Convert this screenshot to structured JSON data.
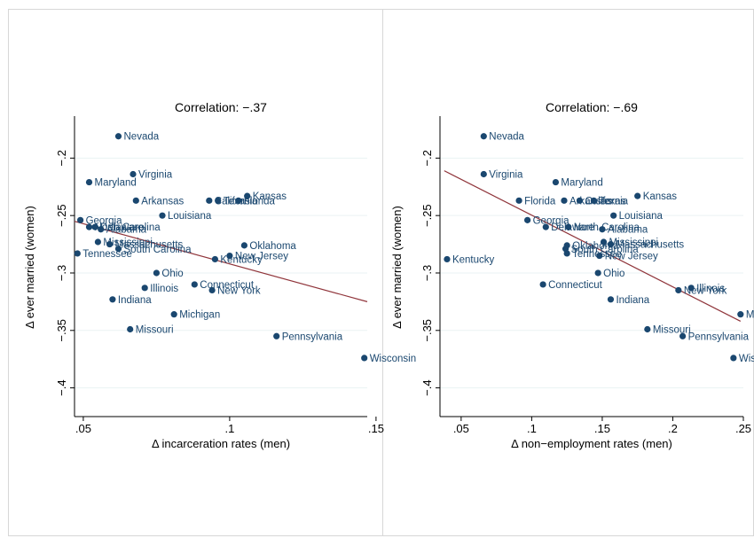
{
  "colors": {
    "marker": "#1a476f",
    "fit_line": "#90353b",
    "axis": "#000000",
    "grid": "#eaf2f3",
    "frame": "#d7d7d7",
    "background": "#ffffff"
  },
  "chart_data": [
    {
      "type": "scatter",
      "title": "Correlation: −.37",
      "xlabel": "Δ incarceration rates (men)",
      "ylabel": "Δ ever married (women)",
      "xlim": [
        0.047,
        0.147
      ],
      "ylim": [
        -0.425,
        -0.165
      ],
      "xticks": [
        {
          "value": 0.05,
          "label": ".05"
        },
        {
          "value": 0.1,
          "label": ".1"
        },
        {
          "value": 0.15,
          "label": ".15"
        }
      ],
      "yticks": [
        {
          "value": -0.2,
          "label": "−.2"
        },
        {
          "value": -0.25,
          "label": "−.25"
        },
        {
          "value": -0.3,
          "label": "−.3"
        },
        {
          "value": -0.35,
          "label": "−.35"
        },
        {
          "value": -0.4,
          "label": "−.4"
        }
      ],
      "grid": true,
      "fit_line": {
        "x": [
          0.047,
          0.147
        ],
        "y": [
          -0.255,
          -0.325
        ]
      },
      "points": [
        {
          "label": "Nevada",
          "x": 0.062,
          "y": -0.181
        },
        {
          "label": "Virginia",
          "x": 0.067,
          "y": -0.214
        },
        {
          "label": "Maryland",
          "x": 0.052,
          "y": -0.221
        },
        {
          "label": "Arkansas",
          "x": 0.068,
          "y": -0.237
        },
        {
          "label": "California",
          "x": 0.093,
          "y": -0.237
        },
        {
          "label": "Texas",
          "x": 0.096,
          "y": -0.237
        },
        {
          "label": "Florida",
          "x": 0.103,
          "y": -0.237
        },
        {
          "label": "Kansas",
          "x": 0.106,
          "y": -0.233
        },
        {
          "label": "Louisiana",
          "x": 0.077,
          "y": -0.25
        },
        {
          "label": "Georgia",
          "x": 0.049,
          "y": -0.254
        },
        {
          "label": "North Carolina",
          "x": 0.052,
          "y": -0.26
        },
        {
          "label": "Delaware",
          "x": 0.054,
          "y": -0.26
        },
        {
          "label": "Alabama",
          "x": 0.056,
          "y": -0.262
        },
        {
          "label": "Mississippi",
          "x": 0.055,
          "y": -0.273
        },
        {
          "label": "Massachusetts",
          "x": 0.059,
          "y": -0.275
        },
        {
          "label": "South Carolina",
          "x": 0.062,
          "y": -0.279
        },
        {
          "label": "Tennessee",
          "x": 0.048,
          "y": -0.283
        },
        {
          "label": "Oklahoma",
          "x": 0.105,
          "y": -0.276
        },
        {
          "label": "New Jersey",
          "x": 0.1,
          "y": -0.285
        },
        {
          "label": "Kentucky",
          "x": 0.095,
          "y": -0.288
        },
        {
          "label": "Ohio",
          "x": 0.075,
          "y": -0.3
        },
        {
          "label": "Connecticut",
          "x": 0.088,
          "y": -0.31
        },
        {
          "label": "Illinois",
          "x": 0.071,
          "y": -0.313
        },
        {
          "label": "New York",
          "x": 0.094,
          "y": -0.315
        },
        {
          "label": "Indiana",
          "x": 0.06,
          "y": -0.323
        },
        {
          "label": "Michigan",
          "x": 0.081,
          "y": -0.336
        },
        {
          "label": "Missouri",
          "x": 0.066,
          "y": -0.349
        },
        {
          "label": "Pennsylvania",
          "x": 0.116,
          "y": -0.355
        },
        {
          "label": "Wisconsin",
          "x": 0.146,
          "y": -0.374
        }
      ]
    },
    {
      "type": "scatter",
      "title": "Correlation: −.69",
      "xlabel": "Δ non−employment rates (men)",
      "ylabel": "Δ ever married (women)",
      "xlim": [
        0.035,
        0.25
      ],
      "ylim": [
        -0.425,
        -0.165
      ],
      "xticks": [
        {
          "value": 0.05,
          "label": ".05"
        },
        {
          "value": 0.1,
          "label": ".1"
        },
        {
          "value": 0.15,
          "label": ".15"
        },
        {
          "value": 0.2,
          "label": ".2"
        },
        {
          "value": 0.25,
          "label": ".25"
        }
      ],
      "yticks": [
        {
          "value": -0.2,
          "label": "−.2"
        },
        {
          "value": -0.25,
          "label": "−.25"
        },
        {
          "value": -0.3,
          "label": "−.3"
        },
        {
          "value": -0.35,
          "label": "−.35"
        },
        {
          "value": -0.4,
          "label": "−.4"
        }
      ],
      "grid": true,
      "fit_line": {
        "x": [
          0.038,
          0.248
        ],
        "y": [
          -0.211,
          -0.342
        ]
      },
      "points": [
        {
          "label": "Nevada",
          "x": 0.066,
          "y": -0.181
        },
        {
          "label": "Virginia",
          "x": 0.066,
          "y": -0.214
        },
        {
          "label": "Maryland",
          "x": 0.117,
          "y": -0.221
        },
        {
          "label": "Florida",
          "x": 0.091,
          "y": -0.237
        },
        {
          "label": "Arkansas",
          "x": 0.123,
          "y": -0.237
        },
        {
          "label": "California",
          "x": 0.134,
          "y": -0.237
        },
        {
          "label": "Texas",
          "x": 0.144,
          "y": -0.237
        },
        {
          "label": "Kansas",
          "x": 0.175,
          "y": -0.233
        },
        {
          "label": "Louisiana",
          "x": 0.158,
          "y": -0.25
        },
        {
          "label": "Georgia",
          "x": 0.097,
          "y": -0.254
        },
        {
          "label": "Delaware",
          "x": 0.11,
          "y": -0.26
        },
        {
          "label": "North Carolina",
          "x": 0.126,
          "y": -0.26
        },
        {
          "label": "Alabama",
          "x": 0.15,
          "y": -0.262
        },
        {
          "label": "Mississippi",
          "x": 0.151,
          "y": -0.273
        },
        {
          "label": "Oklahoma",
          "x": 0.125,
          "y": -0.276
        },
        {
          "label": "Massachusetts",
          "x": 0.156,
          "y": -0.275
        },
        {
          "label": "South Carolina",
          "x": 0.124,
          "y": -0.279
        },
        {
          "label": "Tennessee",
          "x": 0.125,
          "y": -0.283
        },
        {
          "label": "New Jersey",
          "x": 0.148,
          "y": -0.285
        },
        {
          "label": "Kentucky",
          "x": 0.04,
          "y": -0.288
        },
        {
          "label": "Ohio",
          "x": 0.147,
          "y": -0.3
        },
        {
          "label": "Connecticut",
          "x": 0.108,
          "y": -0.31
        },
        {
          "label": "Illinois",
          "x": 0.213,
          "y": -0.313
        },
        {
          "label": "New York",
          "x": 0.204,
          "y": -0.315
        },
        {
          "label": "Indiana",
          "x": 0.156,
          "y": -0.323
        },
        {
          "label": "Michigan",
          "x": 0.248,
          "y": -0.336
        },
        {
          "label": "Missouri",
          "x": 0.182,
          "y": -0.349
        },
        {
          "label": "Pennsylvania",
          "x": 0.207,
          "y": -0.355
        },
        {
          "label": "Wisconsin",
          "x": 0.243,
          "y": -0.374
        }
      ]
    }
  ]
}
